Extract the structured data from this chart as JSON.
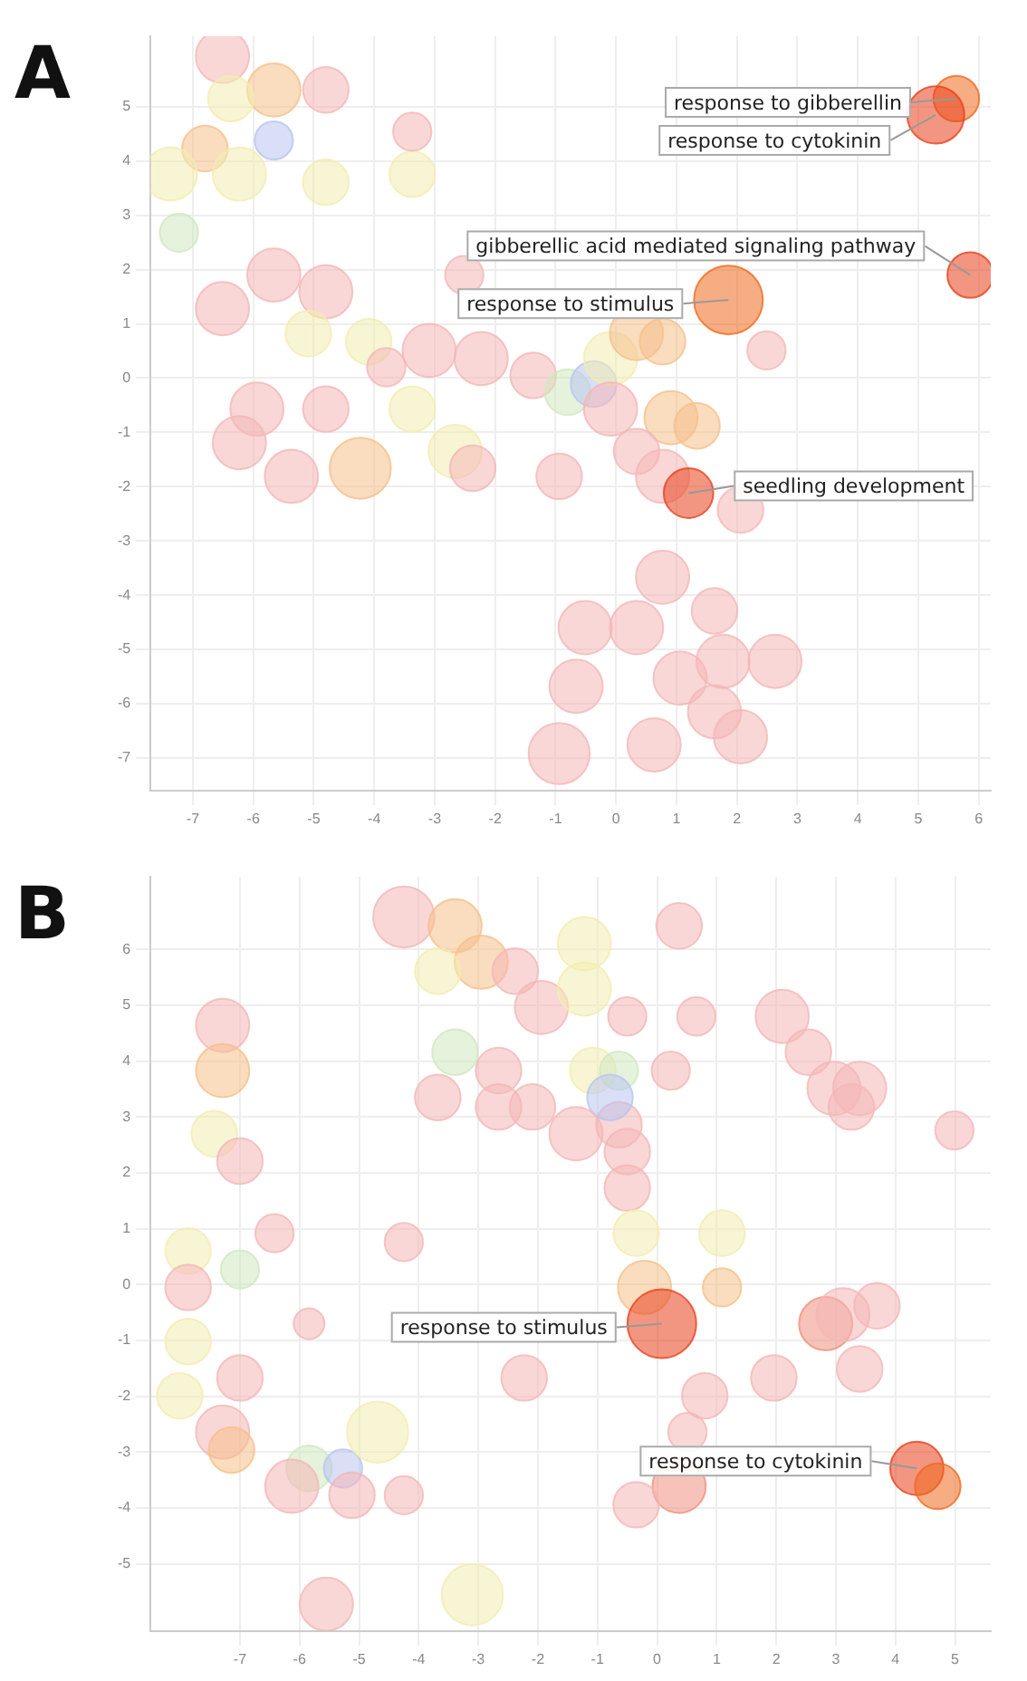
{
  "chart_data": [
    {
      "type": "bubble",
      "title": "A",
      "xlim": [
        -7.7,
        6.2
      ],
      "ylim": [
        -7.6,
        6.3
      ],
      "xticks": [
        -7,
        -6,
        -5,
        -4,
        -3,
        -2,
        -1,
        0,
        1,
        2,
        3,
        4,
        5,
        6
      ],
      "yticks": [
        5,
        4,
        3,
        2,
        1,
        0,
        -1,
        -2,
        -3,
        -4,
        -5,
        -6,
        -7
      ],
      "grid": true,
      "series": [
        {
          "x": [
            -6.51,
            -5.66,
            -4.8,
            -6.8,
            -7.37,
            -6.23,
            -4.8,
            -3.37,
            -5.66,
            -7.23,
            -3.37,
            -6.37,
            -2.51,
            -4.8,
            -5.66,
            -6.51,
            -5.09,
            -4.09,
            -3.8,
            -3.09,
            -2.23,
            -1.37,
            -0.8,
            -0.37,
            -0.09,
            0.34,
            0.77,
            -5.94,
            -6.23,
            -5.37,
            -4.23,
            -3.37,
            -2.66,
            -2.37,
            -4.8,
            -0.94,
            -0.09,
            0.91,
            1.34,
            0.34,
            0.77,
            2.06,
            2.49,
            0.77,
            1.63,
            0.34,
            -0.51,
            -0.66,
            1.06,
            1.77,
            2.63,
            1.63,
            2.06,
            0.63,
            -0.94,
            5.63,
            5.29,
            5.86,
            1.86,
            1.2
          ],
          "values": [
            5.93,
            5.31,
            5.31,
            4.23,
            3.76,
            3.76,
            3.61,
            3.76,
            4.38,
            2.68,
            4.54,
            5.15,
            1.9,
            1.59,
            1.9,
            1.28,
            0.82,
            0.67,
            0.2,
            0.51,
            0.36,
            0.05,
            -0.26,
            -0.11,
            0.36,
            0.82,
            0.67,
            -0.57,
            -1.19,
            -1.81,
            -1.66,
            -0.57,
            -1.35,
            -1.66,
            -0.57,
            -1.81,
            -0.57,
            -0.73,
            -0.88,
            -1.35,
            -1.81,
            -2.43,
            0.51,
            -3.67,
            -4.29,
            -4.6,
            -4.6,
            -5.68,
            -5.53,
            -5.22,
            -5.22,
            -6.15,
            -6.61,
            -6.76,
            -6.92,
            5.15,
            4.85,
            1.9,
            1.44,
            -2.12
          ],
          "sizes": [
            0.6,
            0.6,
            0.44,
            0.44,
            0.6,
            0.6,
            0.44,
            0.44,
            0.31,
            0.31,
            0.31,
            0.44,
            0.31,
            0.6,
            0.6,
            0.6,
            0.44,
            0.44,
            0.31,
            0.6,
            0.6,
            0.44,
            0.44,
            0.44,
            0.6,
            0.6,
            0.44,
            0.6,
            0.6,
            0.6,
            0.79,
            0.44,
            0.6,
            0.44,
            0.44,
            0.44,
            0.6,
            0.6,
            0.44,
            0.44,
            0.6,
            0.44,
            0.31,
            0.6,
            0.44,
            0.6,
            0.6,
            0.6,
            0.6,
            0.6,
            0.6,
            0.6,
            0.6,
            0.6,
            0.79,
            0.44,
            0.69,
            0.44,
            1,
            0.52
          ],
          "colors": [
            "#f4b6b6",
            "#f5c08a",
            "#f4b6b6",
            "#f5c08a",
            "#f3ecb0",
            "#f3ecb0",
            "#f3ecb0",
            "#f3ecb0",
            "#b9c4ee",
            "#cfe8c0",
            "#f4b6b6",
            "#f3ecb0",
            "#f4b6b6",
            "#f4b6b6",
            "#f4b6b6",
            "#f4b6b6",
            "#f3ecb0",
            "#f3ecb0",
            "#f4b6b6",
            "#f4b6b6",
            "#f4b6b6",
            "#f4b6b6",
            "#cfe8c0",
            "#b9c4ee",
            "#f3ecb0",
            "#f5c08a",
            "#f5c08a",
            "#f4b6b6",
            "#f4b6b6",
            "#f4b6b6",
            "#f5c08a",
            "#f3ecb0",
            "#f3ecb0",
            "#f4b6b6",
            "#f4b6b6",
            "#f4b6b6",
            "#f4b6b6",
            "#f5c08a",
            "#f5c08a",
            "#f4b6b6",
            "#f4b6b6",
            "#f4b6b6",
            "#f4b6b6",
            "#f4b6b6",
            "#f4b6b6",
            "#f4b6b6",
            "#f4b6b6",
            "#f4b6b6",
            "#f4b6b6",
            "#f4b6b6",
            "#f4b6b6",
            "#f4b6b6",
            "#f4b6b6",
            "#f4b6b6",
            "#f4b6b6",
            "#f06a1e",
            "#e8401c",
            "#e8401c",
            "#f06a1e",
            "#e8401c"
          ]
        }
      ],
      "annotations": [
        {
          "text": "response to gibberellin",
          "x": 5.63,
          "y": 5.15
        },
        {
          "text": "response to cytokinin",
          "x": 5.29,
          "y": 4.85
        },
        {
          "text": "gibberellic acid mediated signaling pathway",
          "x": 5.86,
          "y": 1.9
        },
        {
          "text": "response to stimulus",
          "x": 1.86,
          "y": 1.44
        },
        {
          "text": "seedling development",
          "x": 1.2,
          "y": -2.12
        }
      ]
    },
    {
      "type": "bubble",
      "title": "B",
      "xlim": [
        -8.5,
        5.6
      ],
      "ylim": [
        -6.2,
        7.3
      ],
      "xticks": [
        -7,
        -6,
        -5,
        -4,
        -3,
        -2,
        -1,
        0,
        1,
        2,
        3,
        4,
        5
      ],
      "yticks": [
        6,
        5,
        4,
        3,
        2,
        1,
        0,
        -1,
        -2,
        -3,
        -4,
        -5
      ],
      "grid": true,
      "series": [
        {
          "x": [
            -4.25,
            -3.39,
            -2.95,
            -3.68,
            -2.38,
            -1.94,
            -1.22,
            -3.39,
            -2.66,
            -2.66,
            -3.68,
            -2.09,
            -7.29,
            -7.29,
            -7.43,
            -7,
            -6.42,
            -7.87,
            -7,
            -7.87,
            -4.25,
            -5.84,
            -7.87,
            -7,
            -7.29,
            -7.14,
            -8.01,
            -5.84,
            -5.27,
            -4.69,
            -6.13,
            -5.12,
            -4.25,
            -5.55,
            -3.1,
            -1.22,
            -1.08,
            -0.64,
            -0.64,
            -0.79,
            -0.5,
            -0.5,
            -0.35,
            -0.21,
            1.09,
            1.09,
            0.51,
            0.8,
            0.37,
            -0.35,
            -2.23,
            -1.36,
            -0.5,
            0.23,
            0.37,
            2.1,
            2.54,
            2.97,
            3.4,
            3.26,
            4.99,
            2.83,
            3.12,
            3.69,
            3.4,
            1.96,
            0.66,
            0.08,
            4.36,
            4.71
          ],
          "values": [
            6.58,
            6.42,
            5.77,
            5.61,
            5.61,
            4.96,
            5.29,
            4.16,
            3.83,
            3.18,
            3.35,
            3.18,
            4.64,
            3.83,
            2.7,
            2.21,
            0.92,
            0.6,
            0.27,
            -0.05,
            0.76,
            -0.7,
            -1.02,
            -1.67,
            -2.64,
            -2.96,
            -1.99,
            -3.29,
            -3.29,
            -2.64,
            -3.61,
            -3.77,
            -3.77,
            -5.72,
            -5.55,
            6.1,
            3.83,
            2.86,
            3.83,
            3.35,
            2.38,
            1.73,
            0.92,
            -0.05,
            0.92,
            -0.05,
            -2.64,
            -1.99,
            -3.61,
            -3.94,
            -1.67,
            2.7,
            4.8,
            3.83,
            6.42,
            4.8,
            4.16,
            3.51,
            3.51,
            3.18,
            2.76,
            -0.7,
            -0.54,
            -0.38,
            -1.51,
            -1.67,
            4.8,
            -0.7,
            -3.29,
            -3.61
          ],
          "sizes": [
            0.79,
            0.6,
            0.6,
            0.44,
            0.44,
            0.6,
            0.6,
            0.44,
            0.44,
            0.44,
            0.44,
            0.44,
            0.6,
            0.6,
            0.44,
            0.44,
            0.31,
            0.44,
            0.31,
            0.44,
            0.31,
            0.2,
            0.44,
            0.44,
            0.6,
            0.44,
            0.44,
            0.44,
            0.31,
            0.79,
            0.6,
            0.44,
            0.31,
            0.6,
            0.79,
            0.6,
            0.44,
            0.44,
            0.31,
            0.44,
            0.44,
            0.44,
            0.44,
            0.6,
            0.44,
            0.31,
            0.31,
            0.44,
            0.6,
            0.44,
            0.44,
            0.6,
            0.31,
            0.31,
            0.44,
            0.6,
            0.44,
            0.6,
            0.6,
            0.44,
            0.31,
            0.6,
            0.6,
            0.44,
            0.44,
            0.44,
            0.31,
            1,
            0.6,
            0.44
          ],
          "colors": [
            "#f4b6b6",
            "#f5c08a",
            "#f5c08a",
            "#f3ecb0",
            "#f4b6b6",
            "#f4b6b6",
            "#f3ecb0",
            "#cfe8c0",
            "#f4b6b6",
            "#f4b6b6",
            "#f4b6b6",
            "#f4b6b6",
            "#f4b6b6",
            "#f5c08a",
            "#f3ecb0",
            "#f4b6b6",
            "#f4b6b6",
            "#f3ecb0",
            "#cfe8c0",
            "#f4b6b6",
            "#f4b6b6",
            "#f4b6b6",
            "#f3ecb0",
            "#f4b6b6",
            "#f4b6b6",
            "#f5c08a",
            "#f3ecb0",
            "#cfe8c0",
            "#b9c4ee",
            "#f3ecb0",
            "#f4b6b6",
            "#f4b6b6",
            "#f4b6b6",
            "#f4b6b6",
            "#f3ecb0",
            "#f3ecb0",
            "#f3ecb0",
            "#f4b6b6",
            "#cfe8c0",
            "#b9c4ee",
            "#f4b6b6",
            "#f4b6b6",
            "#f3ecb0",
            "#f5c08a",
            "#f3ecb0",
            "#f5c08a",
            "#f4b6b6",
            "#f4b6b6",
            "#f09080",
            "#f4b6b6",
            "#f4b6b6",
            "#f4b6b6",
            "#f4b6b6",
            "#f4b6b6",
            "#f4b6b6",
            "#f4b6b6",
            "#f4b6b6",
            "#f4b6b6",
            "#f4b6b6",
            "#f4b6b6",
            "#f4b6b6",
            "#f09080",
            "#f4b6b6",
            "#f4b6b6",
            "#f4b6b6",
            "#f4b6b6",
            "#f4b6b6",
            "#e8401c",
            "#e8401c",
            "#f06a1e"
          ]
        }
      ],
      "annotations": [
        {
          "text": "response to stimulus",
          "x": 0.08,
          "y": -0.7
        },
        {
          "text": "response to cytokinin",
          "x": 4.36,
          "y": -3.29
        }
      ]
    }
  ]
}
